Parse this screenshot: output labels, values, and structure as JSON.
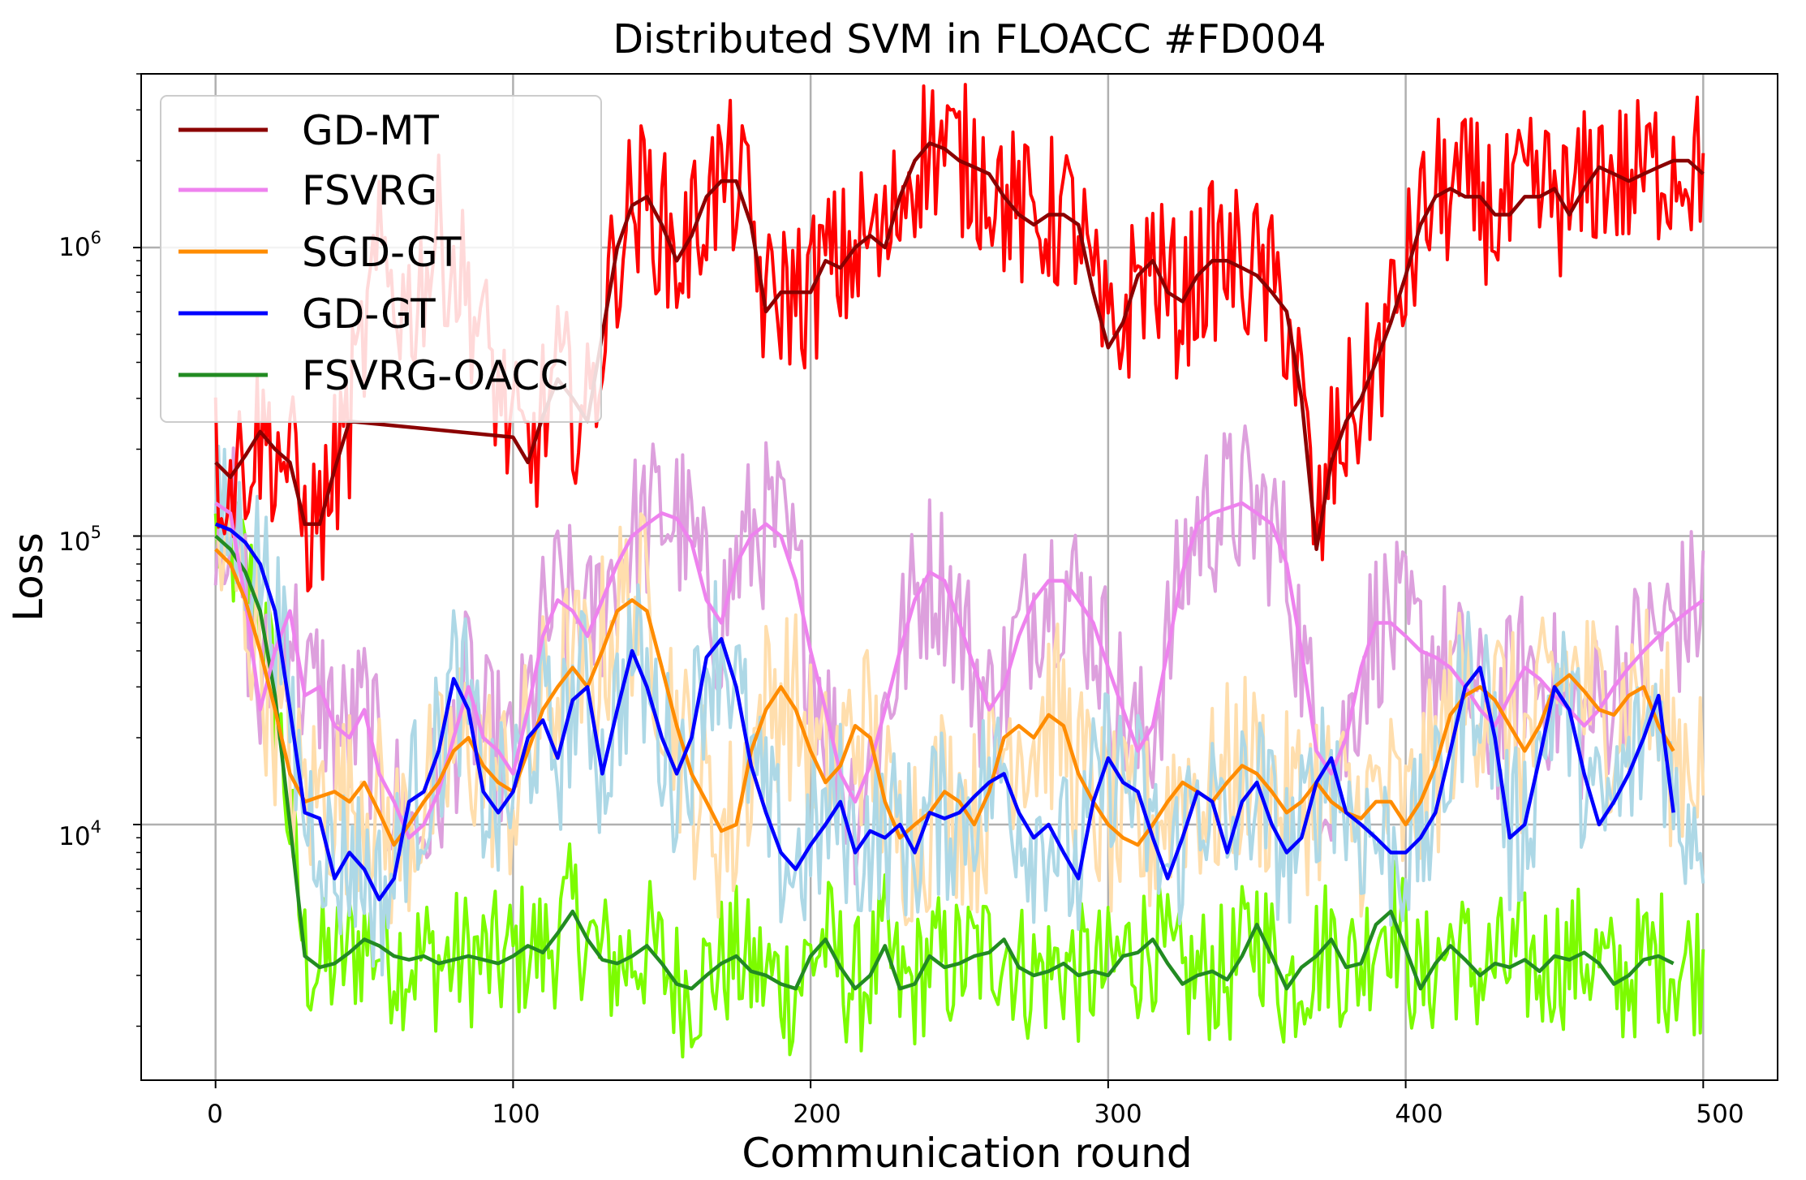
{
  "chart_data": {
    "type": "line",
    "title": "Distributed SVM in FLOACC #FD004",
    "xlabel": "Communication round",
    "ylabel": "Loss",
    "yscale": "log",
    "xlim": [
      -25,
      525
    ],
    "ylim": [
      1300,
      4000000
    ],
    "grid": true,
    "legend_location": "upper-left",
    "x_ticks": [
      0,
      100,
      200,
      300,
      400,
      500
    ],
    "x_tick_labels": [
      "0",
      "100",
      "200",
      "300",
      "400",
      "500"
    ],
    "y_ticks": [
      10000,
      100000,
      1000000
    ],
    "y_tick_labels": [
      {
        "base": "10",
        "exp": "4"
      },
      {
        "base": "10",
        "exp": "5"
      },
      {
        "base": "10",
        "exp": "6"
      }
    ],
    "series": [
      {
        "name": "GD-MT",
        "color": "#8b0000",
        "raw_color": "#ff0000",
        "in_legend": true,
        "x": [
          0,
          5,
          10,
          15,
          20,
          25,
          30,
          35,
          40,
          45,
          100,
          105,
          110,
          115,
          120,
          125,
          130,
          135,
          140,
          145,
          150,
          155,
          160,
          165,
          170,
          175,
          180,
          185,
          190,
          195,
          200,
          205,
          210,
          215,
          220,
          225,
          230,
          235,
          240,
          245,
          250,
          255,
          260,
          265,
          270,
          275,
          280,
          285,
          290,
          295,
          300,
          305,
          310,
          315,
          320,
          325,
          330,
          335,
          340,
          345,
          350,
          355,
          360,
          365,
          370,
          375,
          380,
          385,
          390,
          395,
          400,
          405,
          410,
          415,
          420,
          425,
          430,
          435,
          440,
          445,
          450,
          455,
          460,
          465,
          470,
          475,
          480,
          485,
          490,
          495,
          500
        ],
        "values": [
          180000,
          160000,
          190000,
          230000,
          200000,
          180000,
          110000,
          110000,
          170000,
          250000,
          220000,
          180000,
          260000,
          350000,
          300000,
          250000,
          500000,
          1000000,
          1400000,
          1500000,
          1200000,
          900000,
          1100000,
          1500000,
          1700000,
          1700000,
          1200000,
          600000,
          700000,
          700000,
          700000,
          900000,
          850000,
          1000000,
          1100000,
          1000000,
          1500000,
          2000000,
          2300000,
          2200000,
          2000000,
          1900000,
          1800000,
          1500000,
          1300000,
          1200000,
          1300000,
          1300000,
          1200000,
          700000,
          450000,
          550000,
          800000,
          900000,
          700000,
          650000,
          800000,
          900000,
          900000,
          850000,
          800000,
          700000,
          600000,
          300000,
          90000,
          180000,
          250000,
          300000,
          400000,
          550000,
          800000,
          1200000,
          1500000,
          1600000,
          1500000,
          1500000,
          1300000,
          1300000,
          1500000,
          1500000,
          1600000,
          1300000,
          1600000,
          1900000,
          1800000,
          1700000,
          1800000,
          1900000,
          2000000,
          2000000,
          1800000
        ]
      },
      {
        "name": "FSVRG",
        "color": "#ee82ee",
        "raw_color": "#dda0dd",
        "in_legend": true,
        "x": [
          0,
          5,
          10,
          15,
          20,
          25,
          30,
          35,
          40,
          45,
          50,
          55,
          60,
          65,
          70,
          75,
          80,
          85,
          90,
          95,
          100,
          105,
          110,
          115,
          120,
          125,
          130,
          135,
          140,
          145,
          150,
          155,
          160,
          165,
          170,
          175,
          180,
          185,
          190,
          195,
          200,
          205,
          210,
          215,
          220,
          225,
          230,
          235,
          240,
          245,
          250,
          255,
          260,
          265,
          270,
          275,
          280,
          285,
          290,
          295,
          300,
          305,
          310,
          315,
          320,
          325,
          330,
          335,
          340,
          345,
          350,
          355,
          360,
          365,
          370,
          375,
          380,
          385,
          390,
          395,
          400,
          405,
          410,
          415,
          420,
          425,
          430,
          435,
          440,
          445,
          450,
          455,
          460,
          465,
          470,
          475,
          480,
          485,
          490,
          495,
          500
        ],
        "values": [
          130000,
          120000,
          60000,
          25000,
          40000,
          55000,
          28000,
          30000,
          22000,
          20000,
          25000,
          15000,
          12000,
          9000,
          10000,
          13000,
          20000,
          30000,
          20000,
          18000,
          15000,
          25000,
          45000,
          60000,
          55000,
          45000,
          60000,
          80000,
          100000,
          110000,
          120000,
          115000,
          95000,
          60000,
          50000,
          80000,
          100000,
          110000,
          100000,
          70000,
          40000,
          25000,
          15000,
          12000,
          16000,
          25000,
          40000,
          60000,
          75000,
          70000,
          50000,
          35000,
          25000,
          30000,
          45000,
          60000,
          70000,
          70000,
          60000,
          50000,
          35000,
          25000,
          18000,
          22000,
          40000,
          75000,
          110000,
          120000,
          125000,
          130000,
          120000,
          110000,
          80000,
          40000,
          18000,
          15000,
          20000,
          35000,
          50000,
          50000,
          45000,
          40000,
          38000,
          35000,
          30000,
          25000,
          22000,
          28000,
          35000,
          32000,
          28000,
          25000,
          22000,
          25000,
          30000,
          35000,
          40000,
          45000,
          50000,
          55000,
          60000
        ]
      },
      {
        "name": "SGD-GT",
        "color": "#ff8c00",
        "raw_color": "#ffdead",
        "in_legend": true,
        "x": [
          0,
          5,
          10,
          15,
          20,
          25,
          30,
          35,
          40,
          45,
          50,
          55,
          60,
          65,
          70,
          75,
          80,
          85,
          90,
          95,
          100,
          105,
          110,
          115,
          120,
          125,
          130,
          135,
          140,
          145,
          150,
          155,
          160,
          165,
          170,
          175,
          180,
          185,
          190,
          195,
          200,
          205,
          210,
          215,
          220,
          225,
          230,
          235,
          240,
          245,
          250,
          255,
          260,
          265,
          270,
          275,
          280,
          285,
          290,
          295,
          300,
          305,
          310,
          315,
          320,
          325,
          330,
          335,
          340,
          345,
          350,
          355,
          360,
          365,
          370,
          375,
          380,
          385,
          390,
          395,
          400,
          405,
          410,
          415,
          420,
          425,
          430,
          435,
          440,
          445,
          450,
          455,
          460,
          465,
          470,
          475,
          480,
          485,
          490
        ],
        "values": [
          90000,
          80000,
          60000,
          40000,
          25000,
          15000,
          12000,
          12500,
          13000,
          12000,
          14000,
          11000,
          8500,
          10000,
          12000,
          14000,
          18000,
          20000,
          16000,
          14000,
          13000,
          18000,
          25000,
          30000,
          35000,
          30000,
          40000,
          55000,
          60000,
          55000,
          35000,
          22000,
          15000,
          12000,
          9500,
          10000,
          18000,
          25000,
          30000,
          25000,
          18000,
          14000,
          16000,
          22000,
          20000,
          12000,
          9000,
          10000,
          11000,
          13000,
          12000,
          10000,
          13000,
          20000,
          22000,
          20000,
          24000,
          22000,
          15000,
          12000,
          10000,
          9000,
          8500,
          10000,
          12000,
          14000,
          13000,
          12000,
          14000,
          16000,
          15000,
          13000,
          11000,
          12000,
          14000,
          12000,
          11000,
          10500,
          12000,
          12000,
          10000,
          12000,
          16000,
          24000,
          28000,
          30000,
          27000,
          22000,
          18000,
          22000,
          30000,
          33000,
          29000,
          25000,
          24000,
          28000,
          30000,
          22000,
          18000
        ]
      },
      {
        "name": "GD-GT",
        "color": "#0000ff",
        "raw_color": "#add8e6",
        "in_legend": true,
        "x": [
          0,
          5,
          10,
          15,
          20,
          25,
          30,
          35,
          40,
          45,
          50,
          55,
          60,
          65,
          70,
          75,
          80,
          85,
          90,
          95,
          100,
          105,
          110,
          115,
          120,
          125,
          130,
          135,
          140,
          145,
          150,
          155,
          160,
          165,
          170,
          175,
          180,
          185,
          190,
          195,
          200,
          205,
          210,
          215,
          220,
          225,
          230,
          235,
          240,
          245,
          250,
          255,
          260,
          265,
          270,
          275,
          280,
          285,
          290,
          295,
          300,
          305,
          310,
          315,
          320,
          325,
          330,
          335,
          340,
          345,
          350,
          355,
          360,
          365,
          370,
          375,
          380,
          385,
          390,
          395,
          400,
          405,
          410,
          415,
          420,
          425,
          430,
          435,
          440,
          445,
          450,
          455,
          460,
          465,
          470,
          475,
          480,
          485,
          490
        ],
        "values": [
          110000,
          105000,
          95000,
          80000,
          55000,
          25000,
          11000,
          10500,
          6500,
          8000,
          7000,
          5500,
          6500,
          12000,
          13000,
          18000,
          32000,
          25000,
          13000,
          11000,
          13000,
          20000,
          23000,
          17000,
          27000,
          30000,
          15000,
          25000,
          40000,
          30000,
          20000,
          15000,
          20000,
          38000,
          44000,
          30000,
          16000,
          11000,
          8000,
          7000,
          8500,
          10000,
          12000,
          8000,
          9500,
          9000,
          10000,
          8000,
          11000,
          10500,
          11000,
          12500,
          14000,
          15000,
          11000,
          9000,
          10000,
          8000,
          6500,
          12000,
          17000,
          14000,
          13000,
          9000,
          6500,
          9000,
          13000,
          12000,
          8000,
          12000,
          14000,
          10000,
          8000,
          9000,
          14000,
          17000,
          11000,
          10000,
          9000,
          8000,
          8000,
          9000,
          11000,
          18000,
          30000,
          35000,
          20000,
          9000,
          10000,
          17000,
          30000,
          25000,
          15000,
          10000,
          12000,
          15000,
          20000,
          28000,
          11000
        ]
      },
      {
        "name": "FSVRG-OACC",
        "color": "#228b22",
        "raw_color": "#7cfc00",
        "in_legend": true,
        "x": [
          0,
          5,
          10,
          15,
          20,
          25,
          30,
          35,
          40,
          45,
          50,
          55,
          60,
          65,
          70,
          75,
          80,
          85,
          90,
          95,
          100,
          105,
          110,
          115,
          120,
          125,
          130,
          135,
          140,
          145,
          150,
          155,
          160,
          165,
          170,
          175,
          180,
          185,
          190,
          195,
          200,
          205,
          210,
          215,
          220,
          225,
          230,
          235,
          240,
          245,
          250,
          255,
          260,
          265,
          270,
          275,
          280,
          285,
          290,
          295,
          300,
          305,
          310,
          315,
          320,
          325,
          330,
          335,
          340,
          345,
          350,
          355,
          360,
          365,
          370,
          375,
          380,
          385,
          390,
          395,
          400,
          405,
          410,
          415,
          420,
          425,
          430,
          435,
          440,
          445,
          450,
          455,
          460,
          465,
          470,
          475,
          480,
          485,
          490
        ],
        "values": [
          100000,
          90000,
          75000,
          55000,
          28000,
          10000,
          3500,
          3200,
          3300,
          3600,
          4000,
          3800,
          3500,
          3400,
          3500,
          3300,
          3400,
          3500,
          3400,
          3300,
          3500,
          3800,
          3600,
          4200,
          5000,
          4000,
          3400,
          3300,
          3500,
          3800,
          3300,
          2800,
          2700,
          3000,
          3300,
          3500,
          3100,
          3000,
          2800,
          2700,
          3500,
          4000,
          3200,
          2700,
          3000,
          3800,
          2700,
          2800,
          3500,
          3200,
          3300,
          3500,
          3600,
          4000,
          3200,
          3000,
          3100,
          3300,
          3000,
          3100,
          3000,
          3500,
          3600,
          4000,
          3300,
          2800,
          3000,
          3100,
          2900,
          3500,
          4500,
          3500,
          2700,
          3200,
          3500,
          4000,
          3200,
          3300,
          4500,
          5000,
          3700,
          2700,
          3300,
          3800,
          3400,
          3000,
          3300,
          3200,
          3400,
          3100,
          3500,
          3400,
          3600,
          3300,
          2800,
          3000,
          3400,
          3500,
          3300
        ]
      }
    ]
  }
}
